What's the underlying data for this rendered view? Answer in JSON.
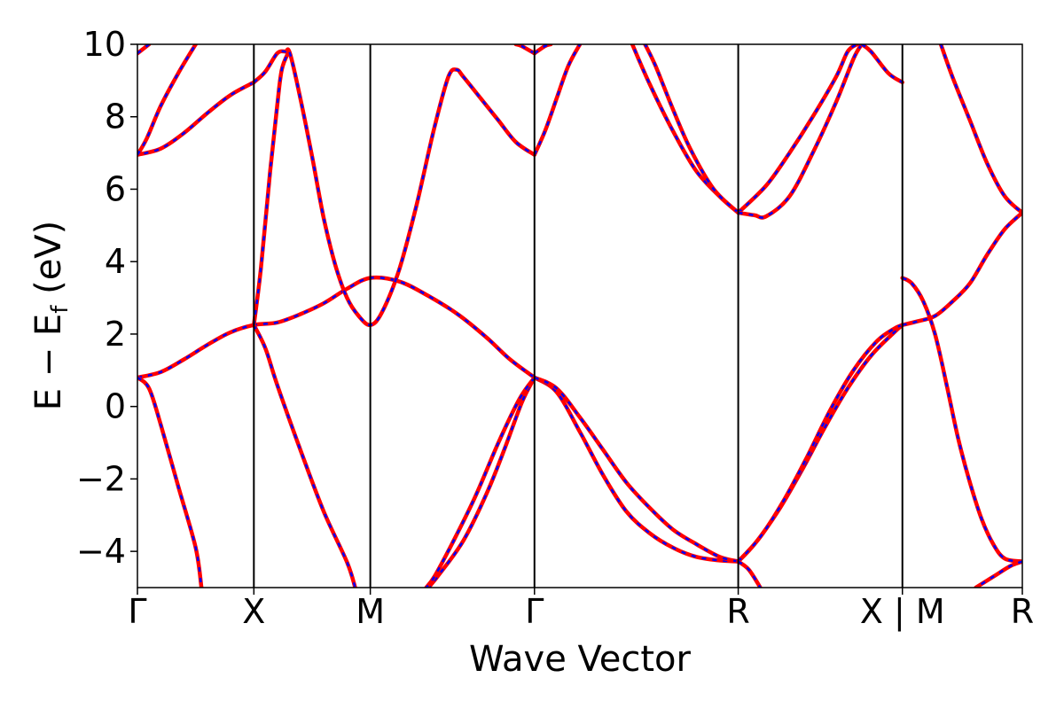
{
  "chart_data": {
    "type": "line",
    "title": "",
    "xlabel": "Wave Vector",
    "ylabel": {
      "main": "E − E",
      "sub": "f",
      "unit": " (eV)"
    },
    "ylim": [
      -5,
      10
    ],
    "yticks": [
      -4,
      -2,
      0,
      2,
      4,
      6,
      8,
      10
    ],
    "ytick_labels": [
      "−4",
      "−2",
      "0",
      "2",
      "4",
      "6",
      "8",
      "10"
    ],
    "xlim": [
      0,
      7.6
    ],
    "kpoints": [
      {
        "label": "Γ",
        "x": 0.0
      },
      {
        "label": "X",
        "x": 1.0
      },
      {
        "label": "M",
        "x": 2.0
      },
      {
        "label": "Γ",
        "x": 3.41
      },
      {
        "label": "R",
        "x": 5.16
      },
      {
        "label": "X | M",
        "x": 6.57
      },
      {
        "label": "R",
        "x": 7.6
      }
    ],
    "grid": false,
    "line_styles": {
      "series_a": "solid red",
      "series_b": "dashed blue"
    },
    "colors": {
      "series_a": "#ff0000",
      "series_b": "#0000ff",
      "kpoint_lines": "#000000"
    },
    "bands": [
      [
        [
          0,
          0.8
        ],
        [
          0.2,
          0.95
        ],
        [
          0.4,
          1.3
        ],
        [
          0.6,
          1.7
        ],
        [
          0.8,
          2.05
        ],
        [
          1.0,
          2.25
        ],
        [
          1.2,
          2.32
        ],
        [
          1.4,
          2.55
        ],
        [
          1.6,
          2.85
        ],
        [
          1.8,
          3.25
        ],
        [
          2.0,
          3.55
        ],
        [
          2.25,
          3.45
        ],
        [
          2.5,
          3.05
        ],
        [
          2.75,
          2.55
        ],
        [
          3.0,
          1.9
        ],
        [
          3.2,
          1.3
        ],
        [
          3.41,
          0.8
        ]
      ],
      [
        [
          0,
          0.8
        ],
        [
          0.1,
          0.5
        ],
        [
          0.2,
          -0.5
        ],
        [
          0.35,
          -2.2
        ],
        [
          0.5,
          -3.9
        ],
        [
          0.55,
          -5.0
        ]
      ],
      [
        [
          1.0,
          2.25
        ],
        [
          1.1,
          1.6
        ],
        [
          1.2,
          0.6
        ],
        [
          1.4,
          -1.2
        ],
        [
          1.6,
          -2.9
        ],
        [
          1.8,
          -4.3
        ],
        [
          1.87,
          -5.0
        ]
      ],
      [
        [
          1.0,
          2.25
        ],
        [
          1.06,
          3.8
        ],
        [
          1.14,
          6.5
        ],
        [
          1.2,
          8.3
        ],
        [
          1.24,
          9.3
        ],
        [
          1.3,
          9.8
        ]
      ],
      [
        [
          1.0,
          8.95
        ],
        [
          0.8,
          8.6
        ],
        [
          0.6,
          8.1
        ],
        [
          0.4,
          7.55
        ],
        [
          0.2,
          7.12
        ],
        [
          0,
          6.95
        ]
      ],
      [
        [
          0,
          6.95
        ],
        [
          0.08,
          7.4
        ],
        [
          0.2,
          8.3
        ],
        [
          0.35,
          9.2
        ],
        [
          0.5,
          10.0
        ]
      ],
      [
        [
          0,
          9.75
        ],
        [
          0.1,
          10.0
        ]
      ],
      [
        [
          1.0,
          8.95
        ],
        [
          1.1,
          9.25
        ],
        [
          1.2,
          9.75
        ],
        [
          1.27,
          9.8
        ],
        [
          1.31,
          9.75
        ],
        [
          1.4,
          8.5
        ],
        [
          1.5,
          6.9
        ],
        [
          1.6,
          5.2
        ],
        [
          1.7,
          3.9
        ],
        [
          1.8,
          3.0
        ],
        [
          1.9,
          2.5
        ],
        [
          2.0,
          2.25
        ],
        [
          2.1,
          2.6
        ],
        [
          2.25,
          3.8
        ],
        [
          2.4,
          5.6
        ],
        [
          2.55,
          7.7
        ],
        [
          2.67,
          9.1
        ],
        [
          2.74,
          9.3
        ],
        [
          2.8,
          9.1
        ],
        [
          2.95,
          8.5
        ],
        [
          3.1,
          7.9
        ],
        [
          3.25,
          7.3
        ],
        [
          3.41,
          6.95
        ]
      ],
      [
        [
          3.41,
          6.95
        ],
        [
          3.5,
          7.6
        ],
        [
          3.6,
          8.5
        ],
        [
          3.7,
          9.4
        ],
        [
          3.8,
          10.0
        ]
      ],
      [
        [
          3.41,
          9.75
        ],
        [
          3.3,
          9.95
        ],
        [
          3.25,
          10.0
        ]
      ],
      [
        [
          3.41,
          9.75
        ],
        [
          3.5,
          9.95
        ],
        [
          3.55,
          10.0
        ]
      ],
      [
        [
          3.41,
          0.8
        ],
        [
          3.3,
          0.1
        ],
        [
          3.15,
          -1.2
        ],
        [
          3.0,
          -2.4
        ],
        [
          2.8,
          -3.7
        ],
        [
          2.6,
          -4.6
        ],
        [
          2.5,
          -5.0
        ]
      ],
      [
        [
          3.41,
          0.8
        ],
        [
          3.28,
          0.2
        ],
        [
          3.1,
          -1.0
        ],
        [
          2.9,
          -2.5
        ],
        [
          2.7,
          -3.8
        ],
        [
          2.55,
          -4.7
        ],
        [
          2.48,
          -5.0
        ]
      ],
      [
        [
          3.41,
          0.8
        ],
        [
          3.6,
          0.4
        ],
        [
          3.8,
          -0.7
        ],
        [
          4.0,
          -1.9
        ],
        [
          4.2,
          -2.9
        ],
        [
          4.4,
          -3.5
        ],
        [
          4.6,
          -3.9
        ],
        [
          4.8,
          -4.15
        ],
        [
          5.0,
          -4.25
        ],
        [
          5.16,
          -4.28
        ]
      ],
      [
        [
          3.41,
          0.8
        ],
        [
          3.6,
          0.5
        ],
        [
          3.8,
          -0.3
        ],
        [
          4.0,
          -1.2
        ],
        [
          4.2,
          -2.1
        ],
        [
          4.4,
          -2.8
        ],
        [
          4.6,
          -3.4
        ],
        [
          4.8,
          -3.8
        ],
        [
          5.0,
          -4.15
        ],
        [
          5.16,
          -4.28
        ]
      ],
      [
        [
          5.16,
          5.35
        ],
        [
          5.0,
          5.8
        ],
        [
          4.8,
          6.5
        ],
        [
          4.6,
          7.6
        ],
        [
          4.4,
          8.9
        ],
        [
          4.25,
          10.0
        ]
      ],
      [
        [
          5.16,
          5.35
        ],
        [
          4.95,
          6.0
        ],
        [
          4.75,
          7.1
        ],
        [
          4.6,
          8.2
        ],
        [
          4.45,
          9.4
        ],
        [
          4.36,
          10.0
        ]
      ],
      [
        [
          5.16,
          5.35
        ],
        [
          5.4,
          6.1
        ],
        [
          5.6,
          7.0
        ],
        [
          5.8,
          8.0
        ],
        [
          6.0,
          9.1
        ],
        [
          6.1,
          9.8
        ],
        [
          6.18,
          10.0
        ]
      ],
      [
        [
          5.16,
          5.35
        ],
        [
          5.3,
          5.28
        ],
        [
          5.4,
          5.25
        ],
        [
          5.6,
          5.8
        ],
        [
          5.8,
          7.0
        ],
        [
          6.0,
          8.4
        ],
        [
          6.15,
          9.6
        ],
        [
          6.22,
          10.0
        ]
      ],
      [
        [
          6.22,
          10.0
        ],
        [
          6.3,
          9.8
        ],
        [
          6.45,
          9.2
        ],
        [
          6.57,
          8.95
        ]
      ],
      [
        [
          5.16,
          -4.28
        ],
        [
          5.3,
          -3.8
        ],
        [
          5.5,
          -2.9
        ],
        [
          5.7,
          -1.8
        ],
        [
          5.9,
          -0.6
        ],
        [
          6.1,
          0.5
        ],
        [
          6.3,
          1.4
        ],
        [
          6.5,
          2.05
        ],
        [
          6.57,
          2.25
        ]
      ],
      [
        [
          5.16,
          -4.28
        ],
        [
          5.35,
          -3.6
        ],
        [
          5.55,
          -2.6
        ],
        [
          5.75,
          -1.4
        ],
        [
          5.95,
          -0.1
        ],
        [
          6.15,
          1.0
        ],
        [
          6.35,
          1.8
        ],
        [
          6.5,
          2.15
        ],
        [
          6.57,
          2.25
        ]
      ],
      [
        [
          5.16,
          -4.28
        ],
        [
          5.25,
          -4.5
        ],
        [
          5.35,
          -5.0
        ]
      ],
      [
        [
          6.57,
          2.25
        ],
        [
          6.7,
          2.35
        ],
        [
          6.85,
          2.5
        ],
        [
          7.0,
          2.9
        ],
        [
          7.15,
          3.4
        ],
        [
          7.3,
          4.2
        ],
        [
          7.45,
          4.9
        ],
        [
          7.6,
          5.35
        ]
      ],
      [
        [
          6.57,
          3.55
        ],
        [
          6.65,
          3.4
        ],
        [
          6.75,
          2.9
        ],
        [
          6.85,
          2.0
        ],
        [
          6.95,
          0.6
        ],
        [
          7.05,
          -0.9
        ],
        [
          7.15,
          -2.1
        ],
        [
          7.25,
          -3.1
        ],
        [
          7.35,
          -3.8
        ],
        [
          7.45,
          -4.2
        ],
        [
          7.6,
          -4.28
        ]
      ],
      [
        [
          7.6,
          -4.28
        ],
        [
          7.5,
          -4.4
        ],
        [
          7.35,
          -4.7
        ],
        [
          7.2,
          -5.0
        ]
      ],
      [
        [
          6.9,
          10.0
        ],
        [
          7.0,
          9.1
        ],
        [
          7.15,
          7.9
        ],
        [
          7.3,
          6.7
        ],
        [
          7.45,
          5.8
        ],
        [
          7.6,
          5.35
        ]
      ]
    ]
  }
}
